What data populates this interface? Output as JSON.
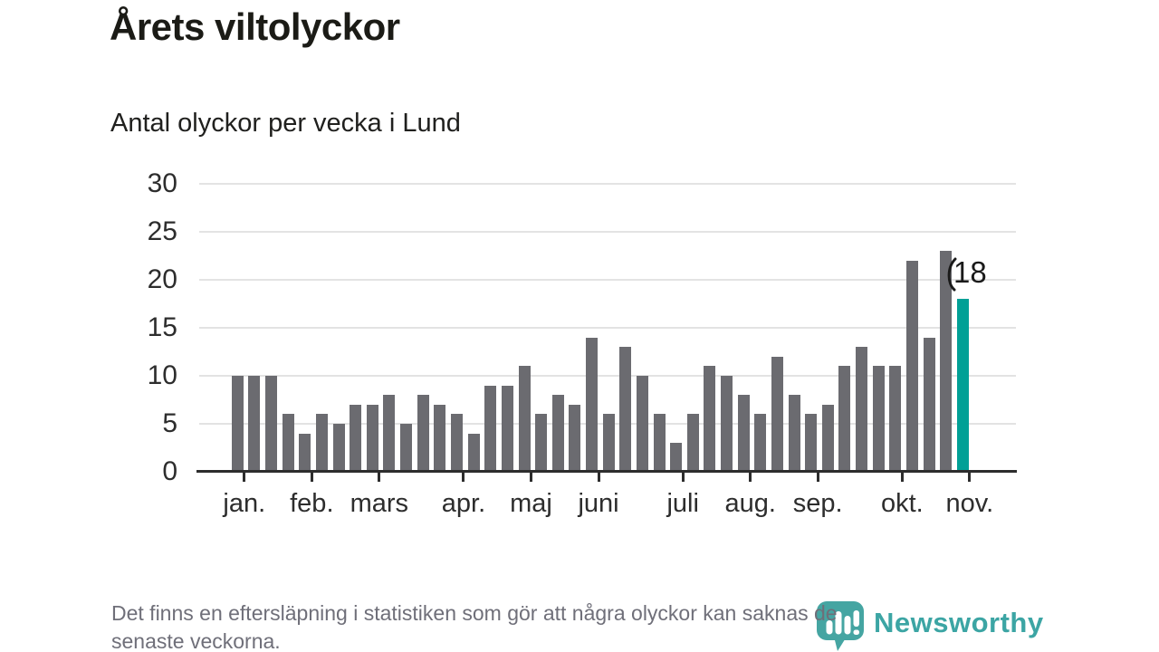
{
  "header": {
    "title": "Årets viltolyckor",
    "subtitle": "Antal olyckor per vecka i Lund"
  },
  "chart_data": {
    "type": "bar",
    "title": "Årets viltolyckor",
    "subtitle": "Antal olyckor per vecka i Lund",
    "ylabel": "Antal olyckor per vecka",
    "values": [
      10,
      10,
      10,
      6,
      4,
      6,
      5,
      7,
      7,
      8,
      5,
      8,
      7,
      6,
      4,
      9,
      9,
      11,
      6,
      8,
      7,
      14,
      6,
      13,
      10,
      6,
      3,
      6,
      11,
      10,
      8,
      6,
      12,
      8,
      6,
      7,
      11,
      13,
      11,
      11,
      22,
      14,
      23,
      18
    ],
    "x_months": [
      {
        "label": "jan.",
        "after_week": 1
      },
      {
        "label": "feb.",
        "after_week": 5
      },
      {
        "label": "mars",
        "after_week": 9
      },
      {
        "label": "apr.",
        "after_week": 14
      },
      {
        "label": "maj",
        "after_week": 18
      },
      {
        "label": "juni",
        "after_week": 22
      },
      {
        "label": "juli",
        "after_week": 27
      },
      {
        "label": "aug.",
        "after_week": 31
      },
      {
        "label": "sep.",
        "after_week": 35
      },
      {
        "label": "okt.",
        "after_week": 40
      },
      {
        "label": "nov.",
        "after_week": 44
      }
    ],
    "y_ticks": [
      0,
      5,
      10,
      15,
      20,
      25,
      30
    ],
    "ylim": [
      0,
      30
    ],
    "grid": "horizontal",
    "legend": "none",
    "bar_color": "#6b6b70",
    "highlight_color": "#00a096",
    "highlight_index": 43,
    "annotation": {
      "text": "18",
      "value": 18,
      "week": 44
    }
  },
  "footer": {
    "line1": "Det finns en eftersläpning i statistiken som gör att några olyckor kan saknas de",
    "line2": "senaste veckorna."
  },
  "logo": {
    "text": "Newsworthy",
    "color": "#3ca5a4",
    "icon": "speech-bubble-bar-chart-exclamation"
  }
}
